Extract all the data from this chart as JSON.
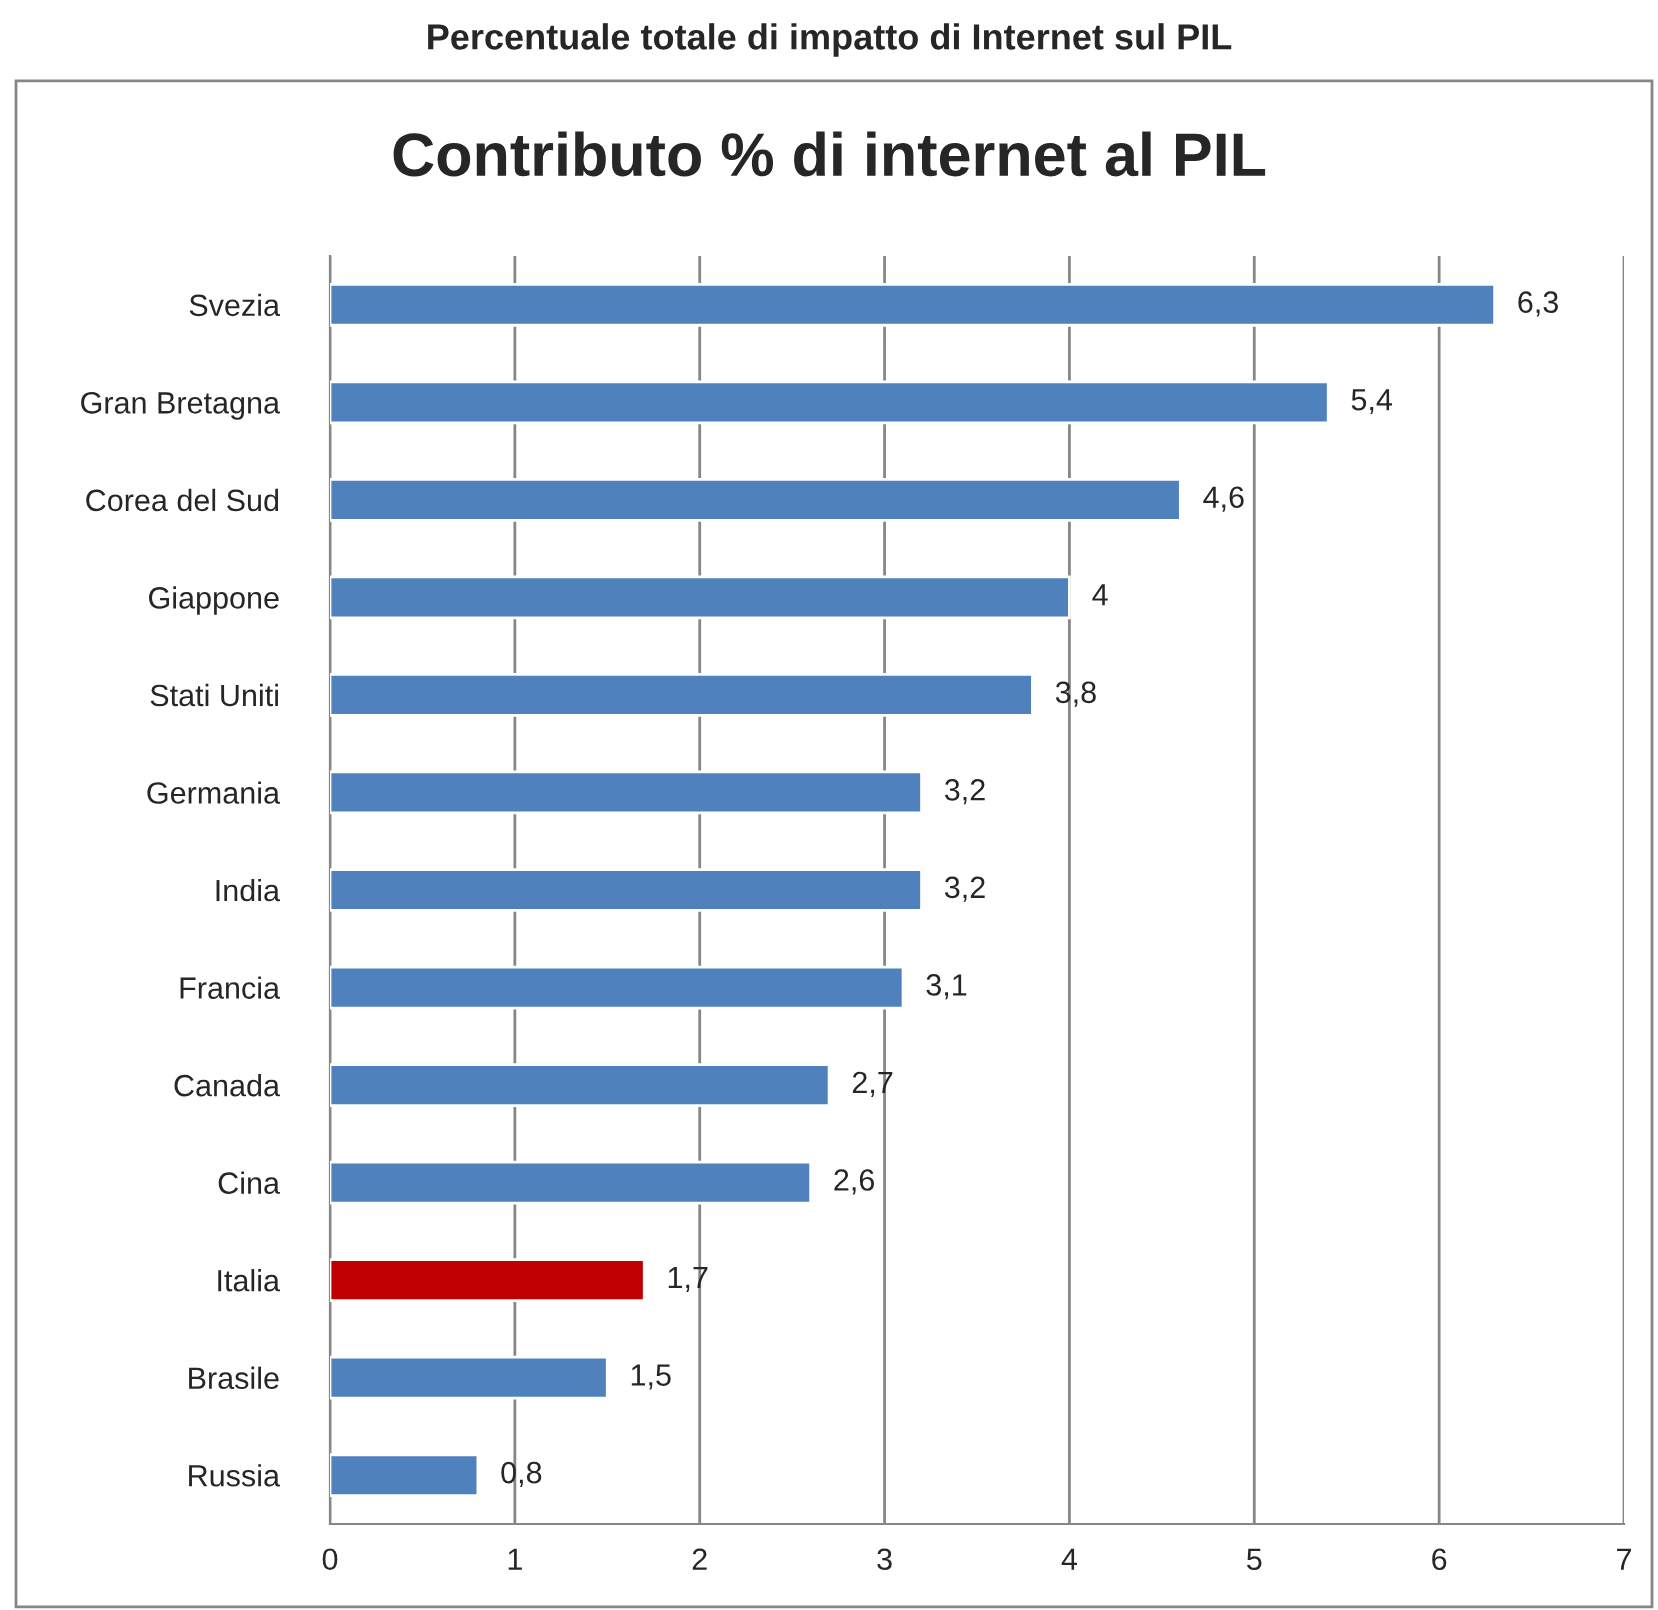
{
  "chart_data": {
    "type": "bar",
    "orientation": "horizontal",
    "title": "Percentuale totale di impatto di Internet sul PIL",
    "subtitle": "Contributo % di internet al PIL",
    "categories": [
      "Svezia",
      "Gran Bretagna",
      "Corea del Sud",
      "Giappone",
      "Stati Uniti",
      "Germania",
      "India",
      "Francia",
      "Canada",
      "Cina",
      "Italia",
      "Brasile",
      "Russia"
    ],
    "values": [
      6.3,
      5.4,
      4.6,
      4,
      3.8,
      3.2,
      3.2,
      3.1,
      2.7,
      2.6,
      1.7,
      1.5,
      0.8
    ],
    "colors": [
      "#4f81bd",
      "#4f81bd",
      "#4f81bd",
      "#4f81bd",
      "#4f81bd",
      "#4f81bd",
      "#4f81bd",
      "#4f81bd",
      "#4f81bd",
      "#4f81bd",
      "#c00000",
      "#4f81bd",
      "#4f81bd"
    ],
    "value_labels": [
      "6,3",
      "5,4",
      "4,6",
      "4",
      "3,8",
      "3,2",
      "3,2",
      "3,1",
      "2,7",
      "2,6",
      "1,7",
      "1,5",
      "0,8"
    ],
    "xlim": [
      0,
      7
    ],
    "xticks": [
      0,
      1,
      2,
      3,
      4,
      5,
      6,
      7
    ],
    "grid": "x"
  }
}
